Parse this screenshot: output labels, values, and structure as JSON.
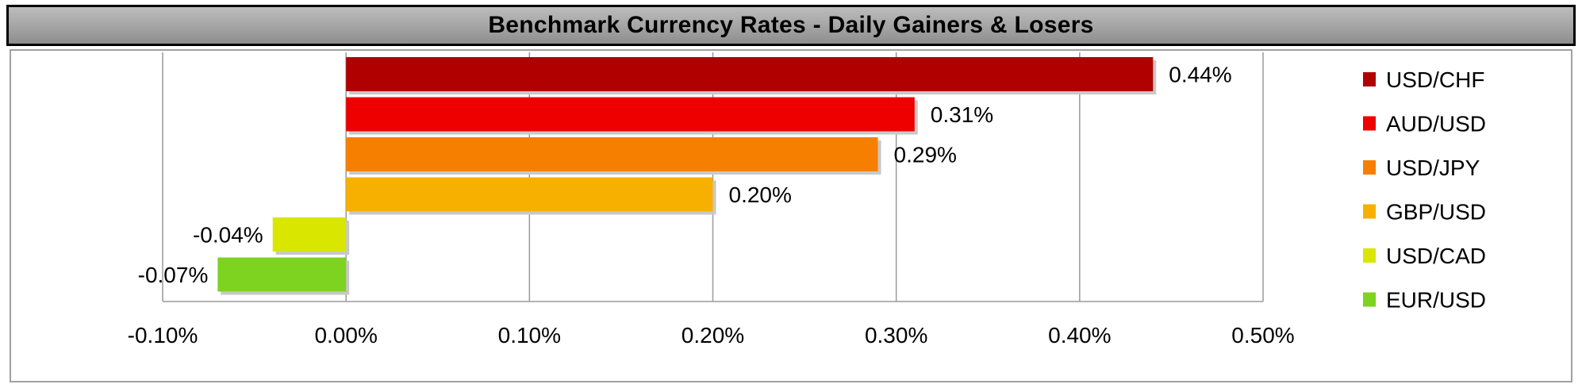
{
  "header": {
    "title": "Benchmark Currency Rates - Daily Gainers & Losers"
  },
  "chart_data": {
    "type": "bar",
    "orientation": "horizontal",
    "title": "Benchmark Currency Rates - Daily Gainers & Losers",
    "categories": [
      "USD/CHF",
      "AUD/USD",
      "USD/JPY",
      "GBP/USD",
      "USD/CAD",
      "EUR/USD"
    ],
    "values": [
      0.44,
      0.31,
      0.29,
      0.2,
      -0.04,
      -0.07
    ],
    "data_labels": [
      "0.44%",
      "0.31%",
      "0.29%",
      "0.20%",
      "-0.04%",
      "-0.07%"
    ],
    "colors": [
      "#b00000",
      "#ee0000",
      "#f77f00",
      "#f7b000",
      "#d9e600",
      "#7ed321"
    ],
    "xlim": [
      -0.1,
      0.5
    ],
    "x_ticks": [
      -0.1,
      0.0,
      0.1,
      0.2,
      0.3,
      0.4,
      0.5
    ],
    "x_tick_labels": [
      "-0.10%",
      "0.00%",
      "0.10%",
      "0.20%",
      "0.30%",
      "0.40%",
      "0.50%"
    ],
    "grid": "vertical",
    "legend_position": "right",
    "legend": [
      "USD/CHF",
      "AUD/USD",
      "USD/JPY",
      "GBP/USD",
      "USD/CAD",
      "EUR/USD"
    ]
  }
}
